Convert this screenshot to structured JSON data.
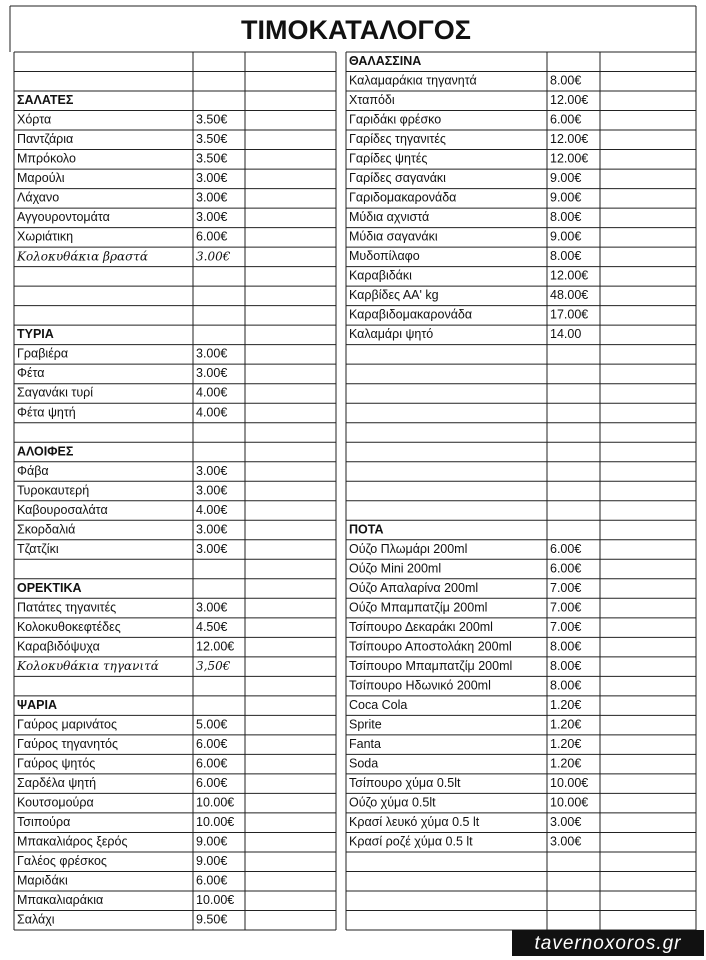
{
  "title": "ΤΙΜΟΚΑΤΑΛΟΓΟΣ",
  "left": [
    {
      "heading": "ΣΑΛΑΤΕΣ",
      "items": [
        {
          "name": "Χόρτα",
          "price": "3.50€"
        },
        {
          "name": "Παντζάρια",
          "price": "3.50€"
        },
        {
          "name": "Μπρόκολο",
          "price": "3.50€"
        },
        {
          "name": "Μαρούλι",
          "price": "3.00€"
        },
        {
          "name": "Λάχανο",
          "price": "3.00€"
        },
        {
          "name": "Αγγουροντομάτα",
          "price": "3.00€"
        },
        {
          "name": "Χωριάτικη",
          "price": "6.00€"
        },
        {
          "name": "Κολοκυθάκια βραστά",
          "price": "3.00€",
          "handwritten": true
        }
      ]
    },
    {
      "heading": "ΤΥΡΙΑ",
      "items": [
        {
          "name": "Γραβιέρα",
          "price": "3.00€"
        },
        {
          "name": "Φέτα",
          "price": "3.00€"
        },
        {
          "name": "Σαγανάκι τυρί",
          "price": "4.00€"
        },
        {
          "name": "Φέτα ψητή",
          "price": "4.00€"
        }
      ]
    },
    {
      "heading": "ΑΛΟΙΦΕΣ",
      "items": [
        {
          "name": "Φάβα",
          "price": "3.00€"
        },
        {
          "name": "Τυροκαυτερή",
          "price": "3.00€"
        },
        {
          "name": "Καβουροσαλάτα",
          "price": "4.00€"
        },
        {
          "name": "Σκορδαλιά",
          "price": "3.00€"
        },
        {
          "name": "Τζατζίκι",
          "price": "3.00€"
        }
      ]
    },
    {
      "heading": "ΟΡΕΚΤΙΚΑ",
      "items": [
        {
          "name": "Πατάτες τηγανιτές",
          "price": "3.00€"
        },
        {
          "name": "Κολοκυθοκεφτέδες",
          "price": "4.50€"
        },
        {
          "name": "Καραβιδόψυχα",
          "price": "12.00€"
        },
        {
          "name": "Κολοκυθάκια τηγανιτά",
          "price": "3,50€",
          "handwritten": true
        }
      ]
    },
    {
      "heading": "ΨΑΡΙΑ",
      "items": [
        {
          "name": "Γαύρος μαρινάτος",
          "price": "5.00€"
        },
        {
          "name": "Γαύρος τηγανητός",
          "price": "6.00€"
        },
        {
          "name": "Γαύρος ψητός",
          "price": "6.00€"
        },
        {
          "name": "Σαρδέλα ψητή",
          "price": "6.00€"
        },
        {
          "name": "Κουτσομούρα",
          "price": "10.00€"
        },
        {
          "name": "Τσιπούρα",
          "price": "10.00€"
        },
        {
          "name": "Μπακαλιάρος ξερός",
          "price": "9.00€"
        },
        {
          "name": "Γαλέος φρέσκος",
          "price": "9.00€"
        },
        {
          "name": "Μαριδάκι",
          "price": "6.00€"
        },
        {
          "name": "Μπακαλιαράκια",
          "price": "10.00€"
        },
        {
          "name": "Σαλάχι",
          "price": "9.50€"
        }
      ]
    }
  ],
  "right": [
    {
      "heading": "ΘΑΛΑΣΣΙΝΑ",
      "items": [
        {
          "name": "Καλαμαράκια τηγανητά",
          "price": "8.00€"
        },
        {
          "name": "Χταπόδι",
          "price": "12.00€"
        },
        {
          "name": "Γαριδάκι φρέσκο",
          "price": "6.00€"
        },
        {
          "name": "Γαρίδες τηγανιτές",
          "price": "12.00€"
        },
        {
          "name": "Γαρίδες ψητές",
          "price": "12.00€"
        },
        {
          "name": "Γαρίδες σαγανάκι",
          "price": "9.00€"
        },
        {
          "name": "Γαριδομακαρονάδα",
          "price": "9.00€"
        },
        {
          "name": "Μύδια αχνιστά",
          "price": "8.00€"
        },
        {
          "name": "Μύδια σαγανάκι",
          "price": "9.00€"
        },
        {
          "name": "Μυδοπίλαφο",
          "price": "8.00€"
        },
        {
          "name": "Καραβιδάκι",
          "price": "12.00€"
        },
        {
          "name": "Καρβίδες ΑΑ' kg",
          "price": "48.00€"
        },
        {
          "name": "Καραβιδομακαρονάδα",
          "price": "17.00€"
        },
        {
          "name": "Καλαμάρι ψητό",
          "price": "14.00"
        }
      ]
    },
    {
      "heading": "ΠΟΤΑ",
      "items": [
        {
          "name": "Ούζο Πλωμάρι 200ml",
          "price": "6.00€"
        },
        {
          "name": "Ούζο Mini 200ml",
          "price": "6.00€"
        },
        {
          "name": "Ούζο Απαλαρίνα 200ml",
          "price": "7.00€"
        },
        {
          "name": "Ούζο Μπαμπατζίμ 200ml",
          "price": "7.00€"
        },
        {
          "name": "Τσίπουρο Δεκαράκι 200ml",
          "price": "7.00€"
        },
        {
          "name": "Τσίπουρο Αποστολάκη 200ml",
          "price": "8.00€"
        },
        {
          "name": "Τσίπουρο Μπαμπατζίμ 200ml",
          "price": "8.00€"
        },
        {
          "name": "Τσίπουρο Ηδωνικό 200ml",
          "price": "8.00€"
        },
        {
          "name": "Coca Cola",
          "price": "1.20€"
        },
        {
          "name": "Sprite",
          "price": "1.20€"
        },
        {
          "name": "Fanta",
          "price": "1.20€"
        },
        {
          "name": "Soda",
          "price": "1.20€"
        },
        {
          "name": "Τσίπουρο χύμα 0.5lt",
          "price": "10.00€"
        },
        {
          "name": "Ούζο χύμα 0.5lt",
          "price": "10.00€"
        },
        {
          "name": "Κρασί λευκό χύμα 0.5 lt",
          "price": "3.00€"
        },
        {
          "name": "Κρασί ροζέ χύμα 0.5 lt",
          "price": "3.00€"
        }
      ]
    }
  ],
  "watermark": "tavernoxoros.gr"
}
